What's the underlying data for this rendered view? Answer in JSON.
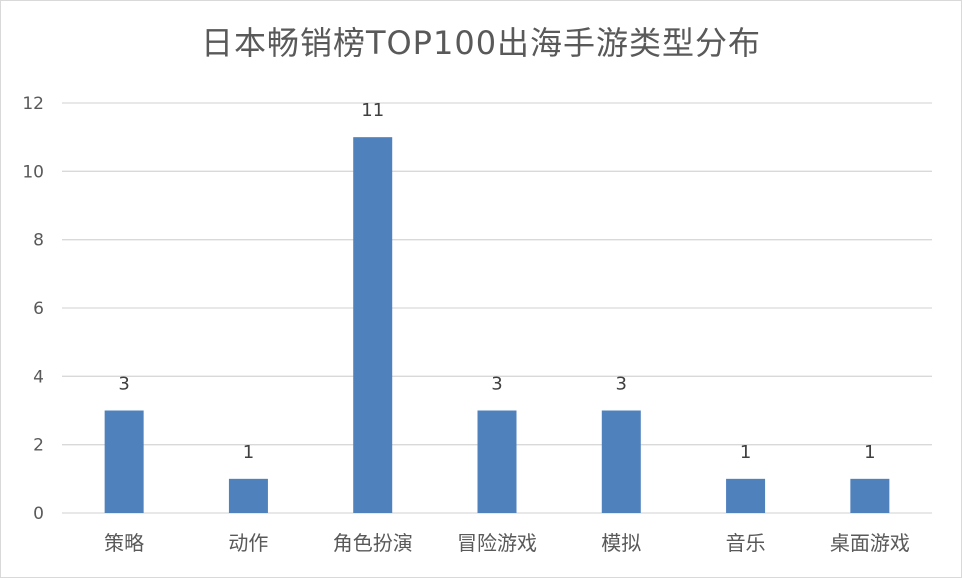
{
  "chart_data": {
    "type": "bar",
    "title": "日本畅销榜TOP100出海手游类型分布",
    "categories": [
      "策略",
      "动作",
      "角色扮演",
      "冒险游戏",
      "模拟",
      "音乐",
      "桌面游戏"
    ],
    "values": [
      3,
      1,
      11,
      3,
      3,
      1,
      1
    ],
    "yticks": [
      "0",
      "2",
      "4",
      "6",
      "8",
      "10",
      "12"
    ],
    "ylim": [
      0,
      12
    ],
    "grid": true,
    "legend": "none",
    "bar_color": "#4f81bd",
    "grid_color": "#d9d9d9"
  }
}
